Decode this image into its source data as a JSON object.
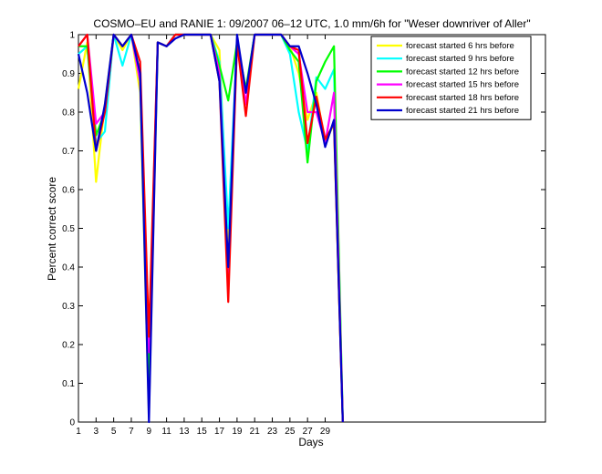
{
  "chart_data": {
    "type": "line",
    "title": "COSMO–EU and RANIE 1: 09/2007 06–12 UTC, 1.0 mm/6h for \"Weser downriver of Aller\"",
    "xlabel": "Days",
    "ylabel": "Percent correct score",
    "xlim": [
      1,
      54
    ],
    "ylim": [
      0,
      1
    ],
    "x_ticks": [
      1,
      3,
      5,
      7,
      9,
      11,
      13,
      15,
      17,
      19,
      21,
      23,
      25,
      27,
      29
    ],
    "y_ticks": [
      0,
      0.1,
      0.2,
      0.3,
      0.4,
      0.5,
      0.6,
      0.7,
      0.8,
      0.9,
      1
    ],
    "y_tick_labels": [
      "0",
      "0.1",
      "0.2",
      "0.3",
      "0.4",
      "0.5",
      "0.6",
      "0.7",
      "0.8",
      "0.9",
      "1"
    ],
    "legend_position": "top-right",
    "grid": false,
    "x": [
      1,
      2,
      3,
      4,
      5,
      6,
      7,
      8,
      9,
      10,
      11,
      12,
      13,
      14,
      15,
      16,
      17,
      18,
      19,
      20,
      21,
      22,
      23,
      24,
      25,
      26,
      27,
      28,
      29,
      30,
      31
    ],
    "series": [
      {
        "name": "forecast started 6 hrs before",
        "color": "#ffff00",
        "values": [
          0.86,
          0.98,
          0.62,
          0.82,
          1.0,
          0.96,
          1.0,
          0.85,
          0.02,
          0.98,
          0.97,
          1.0,
          1.0,
          1.0,
          1.0,
          1.0,
          0.96,
          0.45,
          0.98,
          0.85,
          1.0,
          1.0,
          1.0,
          1.0,
          0.97,
          0.9,
          0.78,
          0.85,
          0.72,
          0.77,
          0.0
        ]
      },
      {
        "name": "forecast started 9 hrs before",
        "color": "#00ffff",
        "values": [
          0.95,
          0.97,
          0.72,
          0.75,
          1.0,
          0.92,
          1.0,
          0.88,
          0.05,
          0.98,
          0.97,
          1.0,
          1.0,
          1.0,
          1.0,
          1.0,
          0.93,
          0.5,
          0.98,
          0.85,
          1.0,
          1.0,
          1.0,
          1.0,
          0.95,
          0.8,
          0.7,
          0.89,
          0.86,
          0.91,
          0.0
        ]
      },
      {
        "name": "forecast started 12 hrs before",
        "color": "#00ff00",
        "values": [
          0.97,
          0.97,
          0.74,
          0.8,
          1.0,
          0.97,
          1.0,
          0.9,
          0.1,
          0.98,
          0.97,
          1.0,
          1.0,
          1.0,
          1.0,
          1.0,
          0.92,
          0.83,
          0.98,
          0.86,
          1.0,
          1.0,
          1.0,
          1.0,
          0.96,
          0.93,
          0.67,
          0.88,
          0.93,
          0.97,
          0.0
        ]
      },
      {
        "name": "forecast started 15 hrs before",
        "color": "#ff00ff",
        "values": [
          0.97,
          1.0,
          0.77,
          0.8,
          1.0,
          0.97,
          1.0,
          0.88,
          0.18,
          0.98,
          0.97,
          1.0,
          1.0,
          1.0,
          1.0,
          1.0,
          0.9,
          0.38,
          0.98,
          0.82,
          1.0,
          1.0,
          1.0,
          1.0,
          0.97,
          0.95,
          0.8,
          0.8,
          0.72,
          0.85,
          0.0
        ]
      },
      {
        "name": "forecast started 18 hrs before",
        "color": "#ff0000",
        "values": [
          0.97,
          1.0,
          0.7,
          0.8,
          1.0,
          0.97,
          1.0,
          0.93,
          0.22,
          0.98,
          0.97,
          1.0,
          1.0,
          1.0,
          1.0,
          1.0,
          0.88,
          0.31,
          0.98,
          0.79,
          1.0,
          1.0,
          1.0,
          1.0,
          0.97,
          0.96,
          0.72,
          0.84,
          0.73,
          0.77,
          0.0
        ]
      },
      {
        "name": "forecast started 21 hrs before",
        "color": "#0000cd",
        "values": [
          0.95,
          0.85,
          0.7,
          0.82,
          1.0,
          0.97,
          1.0,
          0.9,
          0.0,
          0.98,
          0.97,
          0.99,
          1.0,
          1.0,
          1.0,
          1.0,
          0.88,
          0.4,
          1.0,
          0.85,
          1.0,
          1.0,
          1.0,
          1.0,
          0.97,
          0.97,
          0.9,
          0.82,
          0.71,
          0.78,
          0.0
        ]
      }
    ]
  }
}
